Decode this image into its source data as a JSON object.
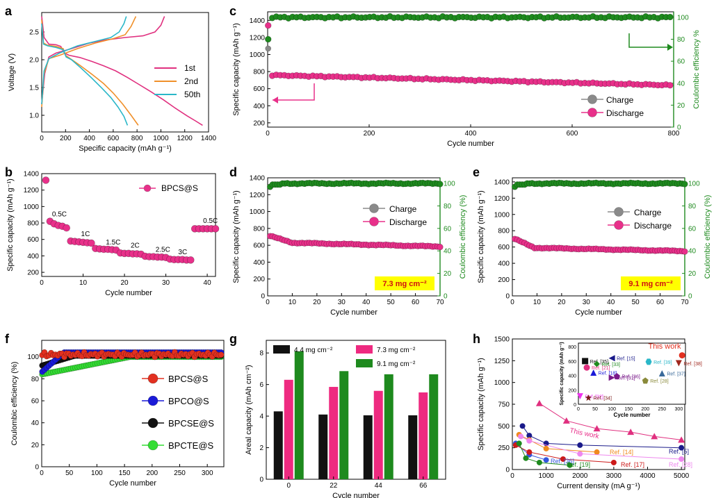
{
  "figure": {
    "colors": {
      "pink": "#e8308a",
      "green": "#1e8a1e",
      "gray": "#8a8a8a",
      "blue": "#1a1ad8",
      "black": "#111111",
      "lime": "#33dd33",
      "red": "#e23020",
      "orange": "#f08a1e",
      "teal": "#2ab7c8"
    },
    "panels": [
      "a",
      "b",
      "c",
      "d",
      "e",
      "f",
      "g",
      "h"
    ]
  },
  "chart_data": [
    {
      "id": "a",
      "type": "line",
      "xlabel": "Specific capacity (mAh g⁻¹)",
      "ylabel": "Voltage (V)",
      "xlim": [
        0,
        1400
      ],
      "ylim": [
        0.7,
        2.85
      ],
      "xticks": [
        "0",
        "200",
        "400",
        "600",
        "800",
        "1000",
        "1200",
        "1400"
      ],
      "yticks": [
        "1.0",
        "1.5",
        "2.0",
        "2.5"
      ],
      "series": [
        {
          "name": "1st",
          "color": "#e0307f",
          "discharge": [
            [
              0,
              2.78
            ],
            [
              20,
              2.4
            ],
            [
              60,
              2.28
            ],
            [
              120,
              2.27
            ],
            [
              160,
              2.24
            ],
            [
              190,
              2.12
            ],
            [
              230,
              2.08
            ],
            [
              320,
              2.04
            ],
            [
              420,
              1.97
            ],
            [
              520,
              1.89
            ],
            [
              620,
              1.8
            ],
            [
              720,
              1.68
            ],
            [
              820,
              1.55
            ],
            [
              920,
              1.42
            ],
            [
              1020,
              1.28
            ],
            [
              1120,
              1.13
            ],
            [
              1220,
              0.99
            ],
            [
              1290,
              0.9
            ],
            [
              1350,
              0.82
            ]
          ],
          "charge": [
            [
              0,
              1.2
            ],
            [
              25,
              1.75
            ],
            [
              60,
              2.05
            ],
            [
              120,
              2.12
            ],
            [
              250,
              2.2
            ],
            [
              400,
              2.3
            ],
            [
              550,
              2.36
            ],
            [
              700,
              2.4
            ],
            [
              850,
              2.43
            ],
            [
              950,
              2.5
            ],
            [
              1000,
              2.62
            ],
            [
              1030,
              2.78
            ]
          ]
        },
        {
          "name": "2nd",
          "color": "#f0902a",
          "discharge": [
            [
              0,
              2.72
            ],
            [
              15,
              2.3
            ],
            [
              50,
              2.26
            ],
            [
              120,
              2.24
            ],
            [
              180,
              2.2
            ],
            [
              200,
              2.08
            ],
            [
              240,
              2.02
            ],
            [
              320,
              1.9
            ],
            [
              420,
              1.74
            ],
            [
              520,
              1.57
            ],
            [
              600,
              1.4
            ],
            [
              680,
              1.2
            ],
            [
              750,
              1.0
            ],
            [
              810,
              0.82
            ]
          ],
          "charge": [
            [
              0,
              1.15
            ],
            [
              20,
              1.75
            ],
            [
              60,
              2.02
            ],
            [
              150,
              2.08
            ],
            [
              300,
              2.2
            ],
            [
              450,
              2.3
            ],
            [
              600,
              2.38
            ],
            [
              700,
              2.45
            ],
            [
              750,
              2.6
            ],
            [
              790,
              2.78
            ]
          ]
        },
        {
          "name": "50th",
          "color": "#2ab7c8",
          "discharge": [
            [
              0,
              2.65
            ],
            [
              15,
              2.28
            ],
            [
              50,
              2.25
            ],
            [
              120,
              2.22
            ],
            [
              180,
              2.18
            ],
            [
              205,
              2.05
            ],
            [
              250,
              2.0
            ],
            [
              330,
              1.85
            ],
            [
              420,
              1.67
            ],
            [
              500,
              1.5
            ],
            [
              580,
              1.32
            ],
            [
              640,
              1.15
            ],
            [
              690,
              0.98
            ],
            [
              720,
              0.82
            ]
          ],
          "charge": [
            [
              0,
              1.2
            ],
            [
              20,
              1.8
            ],
            [
              60,
              2.02
            ],
            [
              150,
              2.12
            ],
            [
              300,
              2.25
            ],
            [
              450,
              2.33
            ],
            [
              580,
              2.4
            ],
            [
              650,
              2.5
            ],
            [
              690,
              2.65
            ],
            [
              710,
              2.78
            ]
          ]
        }
      ]
    },
    {
      "id": "b",
      "type": "scatter",
      "xlabel": "Cycle number",
      "ylabel": "Specific capacity (mAh g⁻¹)",
      "xlim": [
        0,
        42
      ],
      "ylim": [
        150,
        1400
      ],
      "xticks": [
        "0",
        "10",
        "20",
        "30",
        "40"
      ],
      "yticks": [
        "200",
        "400",
        "600",
        "800",
        "1000",
        "1200",
        "1400"
      ],
      "legend": "BPCS@S",
      "rates": [
        {
          "label": "0.5C",
          "x": 2.5,
          "y": 880
        },
        {
          "label": "1C",
          "x": 9.5,
          "y": 640
        },
        {
          "label": "1.5C",
          "x": 15.5,
          "y": 540
        },
        {
          "label": "2C",
          "x": 21.5,
          "y": 500
        },
        {
          "label": "2.5C",
          "x": 27.5,
          "y": 450
        },
        {
          "label": "3C",
          "x": 33,
          "y": 420
        },
        {
          "label": "0.5C",
          "x": 39,
          "y": 800
        }
      ],
      "values": [
        1320,
        820,
        790,
        770,
        760,
        740,
        580,
        575,
        570,
        565,
        560,
        555,
        490,
        485,
        480,
        480,
        475,
        470,
        435,
        430,
        430,
        425,
        425,
        420,
        395,
        390,
        390,
        385,
        385,
        380,
        360,
        355,
        355,
        355,
        350,
        350,
        730,
        730,
        730,
        730,
        730,
        730
      ]
    },
    {
      "id": "c",
      "type": "scatter",
      "xlabel": "Cycle number",
      "ylabel": "Specific capacity (mAh g⁻¹)",
      "y2label": "Coulombic efficiency %",
      "xlim": [
        0,
        800
      ],
      "ylim": [
        150,
        1500
      ],
      "y2lim": [
        0,
        105
      ],
      "xticks": [
        "0",
        "200",
        "400",
        "600",
        "800"
      ],
      "yticks": [
        "200",
        "400",
        "600",
        "800",
        "1000",
        "1200",
        "1400"
      ],
      "y2ticks": [
        "0",
        "20",
        "40",
        "60",
        "80",
        "100"
      ],
      "legend": [
        "Charge",
        "Discharge"
      ],
      "discharge_start": 1340,
      "discharge_end": 640,
      "charge_start": 1070,
      "ce_first": 80,
      "ce_value": 100
    },
    {
      "id": "d",
      "type": "scatter",
      "xlabel": "Cycle number",
      "ylabel": "Specific capacity (mAh g⁻¹)",
      "y2label": "Coulombic efficiency (%)",
      "xlim": [
        0,
        70
      ],
      "ylim": [
        0,
        1400
      ],
      "y2lim": [
        0,
        105
      ],
      "xticks": [
        "0",
        "10",
        "20",
        "30",
        "40",
        "50",
        "60",
        "70"
      ],
      "yticks": [
        "0",
        "200",
        "400",
        "600",
        "800",
        "1000",
        "1200",
        "1400"
      ],
      "y2ticks": [
        "0",
        "20",
        "40",
        "60",
        "80",
        "100"
      ],
      "legend": [
        "Charge",
        "Discharge"
      ],
      "annotation": "7.3 mg cm⁻²",
      "discharge_start": 710,
      "discharge_end": 585,
      "ce_value": 100
    },
    {
      "id": "e",
      "type": "scatter",
      "xlabel": "Cycle number",
      "ylabel": "Specific capacity (mAh g⁻¹)",
      "y2label": "Coulombic efficiency (%)",
      "xlim": [
        0,
        70
      ],
      "ylim": [
        0,
        1450
      ],
      "y2lim": [
        0,
        105
      ],
      "xticks": [
        "0",
        "10",
        "20",
        "30",
        "40",
        "50",
        "60",
        "70"
      ],
      "yticks": [
        "0",
        "200",
        "400",
        "600",
        "800",
        "1000",
        "1200",
        "1400"
      ],
      "y2ticks": [
        "0",
        "20",
        "40",
        "60",
        "80",
        "100"
      ],
      "legend": [
        "Charge",
        "Discharge"
      ],
      "annotation": "9.1 mg cm⁻²",
      "discharge_start": 700,
      "discharge_end": 550,
      "ce_value": 100
    },
    {
      "id": "f",
      "type": "scatter",
      "xlabel": "Cycle number",
      "ylabel": "Coulombic efficiency (%)",
      "xlim": [
        0,
        330
      ],
      "ylim": [
        0,
        115
      ],
      "xticks": [
        "0",
        "50",
        "100",
        "150",
        "200",
        "250",
        "300"
      ],
      "yticks": [
        "0",
        "20",
        "40",
        "60",
        "80",
        "100"
      ],
      "series": [
        {
          "name": "BPCS@S",
          "color": "#e23020",
          "start": 104,
          "end": 100
        },
        {
          "name": "BPCO@S",
          "color": "#1a1ad8",
          "start": 86,
          "end": 104
        },
        {
          "name": "BPCSE@S",
          "color": "#111111",
          "start": 92,
          "end": 101
        },
        {
          "name": "BPCTE@S",
          "color": "#33dd33",
          "start": 84,
          "end": 100
        }
      ]
    },
    {
      "id": "g",
      "type": "bar",
      "xlabel": "Cycle number",
      "ylabel": "Areal capacity (mAh cm⁻²)",
      "categories": [
        "0",
        "22",
        "44",
        "66"
      ],
      "ylim": [
        0,
        8.8
      ],
      "yticks": [
        "0",
        "2",
        "4",
        "6",
        "8"
      ],
      "series": [
        {
          "name": "4.4 mg cm⁻²",
          "color": "#111111",
          "values": [
            4.3,
            4.1,
            4.05,
            4.05
          ]
        },
        {
          "name": "7.3 mg cm⁻²",
          "color": "#ee2a80",
          "values": [
            6.3,
            5.85,
            5.6,
            5.5
          ]
        },
        {
          "name": "9.1 mg cm⁻²",
          "color": "#1e8a1e",
          "values": [
            8.1,
            6.85,
            6.65,
            6.65
          ]
        }
      ]
    },
    {
      "id": "h",
      "type": "scatter",
      "xlabel": "Current density (mA g⁻¹)",
      "ylabel": "Specific capacity (mAh g⁻¹)",
      "xlim": [
        0,
        5100
      ],
      "ylim": [
        0,
        1500
      ],
      "xticks": [
        "0",
        "1000",
        "2000",
        "3000",
        "4000",
        "5000"
      ],
      "yticks": [
        "0",
        "250",
        "500",
        "750",
        "1000",
        "1250",
        "1500"
      ],
      "this_work_label": "This work",
      "series": [
        {
          "name": "This work",
          "color": "#e0307f",
          "points": [
            [
              800,
              760
            ],
            [
              1600,
              560
            ],
            [
              2500,
              470
            ],
            [
              3500,
              430
            ],
            [
              4200,
              380
            ],
            [
              5000,
              340
            ]
          ]
        },
        {
          "name": "Ref. [5]",
          "color": "#1a1a8a",
          "points": [
            [
              300,
              500
            ],
            [
              500,
              390
            ],
            [
              1000,
              300
            ],
            [
              2000,
              280
            ],
            [
              5000,
              250
            ]
          ]
        },
        {
          "name": "Ref. [14]",
          "color": "#f08a1e",
          "points": [
            [
              200,
              400
            ],
            [
              500,
              340
            ],
            [
              1000,
              240
            ],
            [
              2500,
              200
            ]
          ]
        },
        {
          "name": "Ref. [36]",
          "color": "#3355dd",
          "points": [
            [
              100,
              300
            ],
            [
              500,
              170
            ],
            [
              1000,
              110
            ]
          ]
        },
        {
          "name": "Ref. [17]",
          "color": "#cc1a1a",
          "points": [
            [
              100,
              280
            ],
            [
              500,
              200
            ],
            [
              1500,
              120
            ],
            [
              3000,
              80
            ]
          ]
        },
        {
          "name": "Ref. [19]",
          "color": "#1e8a1e",
          "points": [
            [
              200,
              300
            ],
            [
              400,
              130
            ],
            [
              800,
              80
            ],
            [
              1700,
              50
            ]
          ]
        },
        {
          "name": "Ref. [28]",
          "color": "#ee88ee",
          "points": [
            [
              250,
              380
            ],
            [
              500,
              330
            ],
            [
              2000,
              180
            ],
            [
              5000,
              120
            ]
          ]
        }
      ],
      "ref_labels": [
        "Ref. [5]",
        "Ref. [14]",
        "Ref. [36]",
        "Ref. [19]",
        "Ref. [17]",
        "Ref. [28]"
      ],
      "inset": {
        "xlabel": "Cycle number",
        "ylabel": "Specific capacity (mAh g⁻¹)",
        "xlim": [
          0,
          320
        ],
        "ylim": [
          0,
          850
        ],
        "xticks": [
          "0",
          "50",
          "100",
          "150",
          "200",
          "250",
          "300"
        ],
        "yticks": [
          "0",
          "200",
          "400",
          "600",
          "800"
        ],
        "this_work_label": "This work",
        "points": [
          {
            "label": "Ref. [35]",
            "x": 20,
            "y": 600,
            "color": "#111111",
            "shape": "square"
          },
          {
            "label": "Ref. [15]",
            "x": 100,
            "y": 640,
            "color": "#1a1a8a",
            "shape": "tri-left"
          },
          {
            "label": "Ref. [33]",
            "x": 55,
            "y": 560,
            "color": "#1e8a1e",
            "shape": "diamond"
          },
          {
            "label": "Ref. [21]",
            "x": 25,
            "y": 510,
            "color": "#e0307f",
            "shape": "circle"
          },
          {
            "label": "Ref. [39]",
            "x": 210,
            "y": 590,
            "color": "#2ab7c8",
            "shape": "hexagon"
          },
          {
            "label": "Ref. [38]",
            "x": 300,
            "y": 570,
            "color": "#a0281e",
            "shape": "tri-down"
          },
          {
            "label": "This work",
            "x": 310,
            "y": 680,
            "color": "#e23020",
            "shape": "circle"
          },
          {
            "label": "Ref. [18]",
            "x": 45,
            "y": 440,
            "color": "#1a1ad8",
            "shape": "tri-up"
          },
          {
            "label": "Ref. [36]",
            "x": 115,
            "y": 390,
            "color": "#7a1a8a",
            "shape": "pentagon"
          },
          {
            "label": "Ref. [37]",
            "x": 250,
            "y": 430,
            "color": "#3a6a9a",
            "shape": "tri-up"
          },
          {
            "label": "Ref. [31]",
            "x": 100,
            "y": 370,
            "color": "#7a1a8a",
            "shape": "tri-right"
          },
          {
            "label": "Ref. [28]",
            "x": 200,
            "y": 330,
            "color": "#8a8a3a",
            "shape": "pentagon"
          },
          {
            "label": "Ref. [32]",
            "x": 5,
            "y": 110,
            "color": "#ee33ee",
            "shape": "tri-down"
          },
          {
            "label": "Ref. [34]",
            "x": 30,
            "y": 90,
            "color": "#7a1a1a",
            "shape": "star"
          }
        ]
      }
    }
  ]
}
